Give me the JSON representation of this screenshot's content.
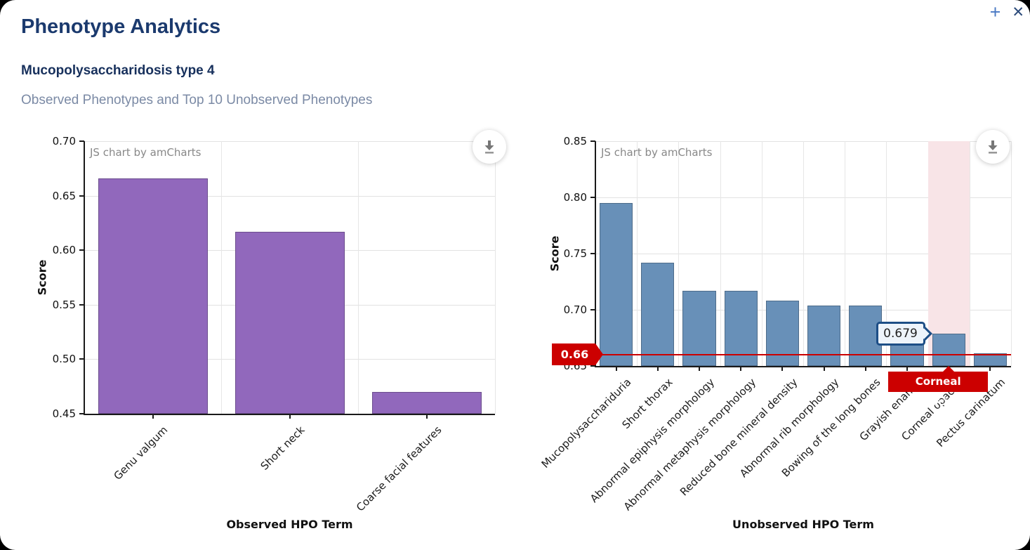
{
  "window": {
    "expand_label": "+",
    "close_label": "✕"
  },
  "header": {
    "title": "Phenotype Analytics",
    "disease": "Mucopolysaccharidosis type 4",
    "subtitle": "Observed Phenotypes and Top 10 Unobserved Phenotypes"
  },
  "watermark": "JS chart by amCharts",
  "colors": {
    "title": "#1B3A6E",
    "disease": "#17305C",
    "subtitle": "#7B8AA5",
    "observed_bar": "#9168BC",
    "unobserved_bar": "#6890B8",
    "threshold_red": "#CC0000",
    "highlight_band": "#F8E4E7",
    "tooltip_border": "#1D4E86",
    "tooltip_bg": "#EEF4FB"
  },
  "chart_data": [
    {
      "type": "bar",
      "name": "observed",
      "title": "",
      "xlabel": "Observed HPO Term",
      "ylabel": "Score",
      "categories": [
        "Genu valgum",
        "Short neck",
        "Coarse facial features"
      ],
      "values": [
        0.666,
        0.617,
        0.47
      ],
      "ylim": [
        0.45,
        0.7
      ],
      "yticks": [
        0.45,
        0.5,
        0.55,
        0.6,
        0.65,
        0.7
      ],
      "grid": true,
      "legend": "none",
      "bar_color": "#9168BC"
    },
    {
      "type": "bar",
      "name": "unobserved",
      "title": "",
      "xlabel": "Unobserved HPO Term",
      "ylabel": "Score",
      "categories": [
        "Mucopolysacchariduria",
        "Short thorax",
        "Abnormal epiphysis morphology",
        "Abnormal metaphysis morphology",
        "Reduced bone mineral density",
        "Abnormal rib morphology",
        "Bowing of the long bones",
        "Grayish enamel",
        "Corneal opacity",
        "Pectus carinatum"
      ],
      "values": [
        0.795,
        0.742,
        0.717,
        0.717,
        0.708,
        0.704,
        0.704,
        0.689,
        0.679,
        0.661
      ],
      "ylim": [
        0.65,
        0.85
      ],
      "yticks": [
        0.65,
        0.7,
        0.75,
        0.8,
        0.85
      ],
      "grid": true,
      "legend": "none",
      "bar_color": "#6890B8",
      "threshold": {
        "value": 0.66,
        "label": "0.66"
      },
      "highlighted_category": "Corneal opacity",
      "value_tooltip": {
        "category": "Corneal opacity",
        "text": "0.679"
      },
      "category_tooltip": {
        "text": "Corneal opacity"
      }
    }
  ]
}
